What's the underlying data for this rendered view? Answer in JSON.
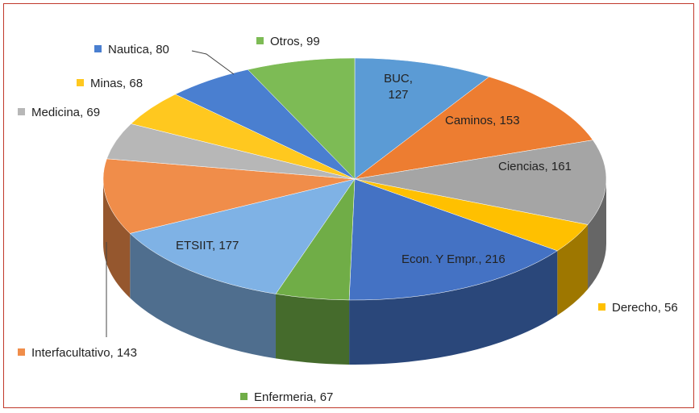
{
  "chart_data": {
    "type": "pie3d",
    "categories": [
      "BUC",
      "Caminos",
      "Ciencias",
      "Derecho",
      "Econ. Y Empr.",
      "Enfermeria",
      "ETSIIT",
      "Interfacultativo",
      "Medicina",
      "Minas",
      "Nautica",
      "Otros"
    ],
    "values": [
      127,
      153,
      161,
      56,
      216,
      67,
      177,
      143,
      69,
      68,
      80,
      99
    ],
    "value_labels": [
      "BUC, 127",
      "Caminos, 153",
      "Ciencias, 161",
      "Derecho, 56",
      "Econ. Y Empr., 216",
      "Enfermeria, 67",
      "ETSIIT, 177",
      "Interfacultativo, 143",
      "Medicina, 69",
      "Minas, 68",
      "Nautica, 80",
      "Otros, 99"
    ],
    "colors": [
      "#5b9bd5",
      "#ed7d31",
      "#a5a5a5",
      "#ffc000",
      "#4472c4",
      "#70ad47",
      "#7fb2e5",
      "#f08d4a",
      "#b7b7b7",
      "#ffc81f",
      "#4a7fd0",
      "#7dbb55"
    ]
  }
}
